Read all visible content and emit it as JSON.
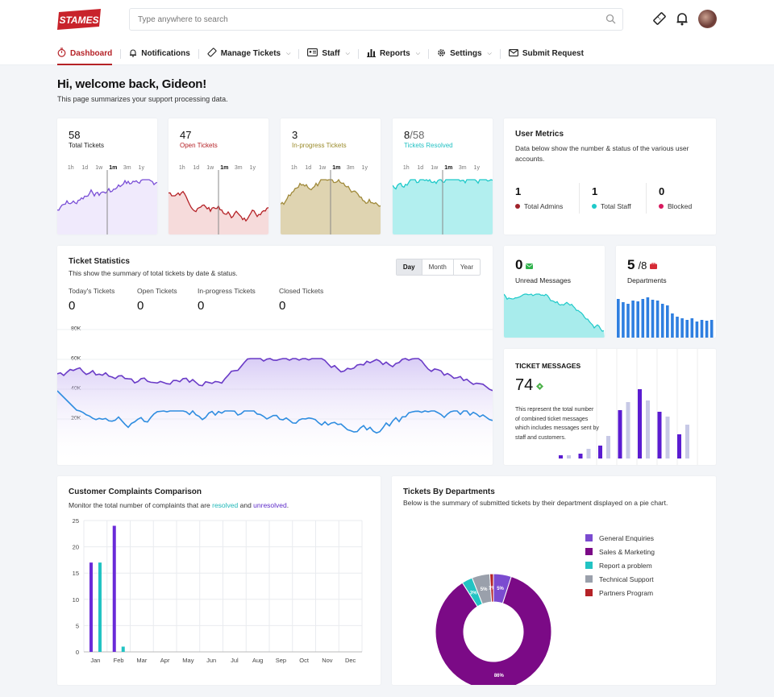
{
  "brand": {
    "logo_text": "STAMES",
    "logo_color": "#c8232b",
    "accent": "#b52227"
  },
  "search": {
    "placeholder": "Type anywhere to search"
  },
  "nav": [
    {
      "label": "Dashboard",
      "icon": "stopwatch-icon",
      "active": true,
      "dropdown": false
    },
    {
      "label": "Notifications",
      "icon": "bell-icon",
      "dropdown": false
    },
    {
      "label": "Manage Tickets",
      "icon": "ticket-icon",
      "dropdown": true
    },
    {
      "label": "Staff",
      "icon": "id-card-icon",
      "dropdown": true
    },
    {
      "label": "Reports",
      "icon": "bar-chart-icon",
      "dropdown": true
    },
    {
      "label": "Settings",
      "icon": "gear-icon",
      "dropdown": true
    },
    {
      "label": "Submit Request",
      "icon": "envelope-icon",
      "dropdown": false
    }
  ],
  "welcome": {
    "title": "Hi, welcome back, Gideon!",
    "subtitle": "This page summarizes your support processing data."
  },
  "mini_cards": [
    {
      "value": "58",
      "label": "Total Tickets",
      "label_color": "#222222",
      "color": "#7a4fd6",
      "fill": "#ede6fb"
    },
    {
      "value": "47",
      "label": "Open Tickets",
      "label_color": "#b52227",
      "color": "#b52227",
      "fill": "#f5d5d5"
    },
    {
      "value": "3",
      "label": "In-progress Tickets",
      "label_color": "#9a8a2a",
      "color": "#a08a3b",
      "fill": "#d9cda3"
    },
    {
      "value": "8",
      "value_suffix": "/58",
      "label": "Tickets Resolved",
      "label_color": "#22c1c3",
      "color": "#1ec9c9",
      "fill": "#a5ecec"
    }
  ],
  "ranges": [
    "1h",
    "1d",
    "1w",
    "1m",
    "3m",
    "1y"
  ],
  "user_metrics": {
    "title": "User Metrics",
    "description": "Data below show the number & status of the various user accounts.",
    "stats": [
      {
        "value": "1",
        "label": "Total Admins",
        "color": "#a0222a"
      },
      {
        "value": "1",
        "label": "Total Staff",
        "color": "#1ec9c9"
      },
      {
        "value": "0",
        "label": "Blocked",
        "color": "#d8195e"
      }
    ]
  },
  "ticket_stats": {
    "title": "Ticket Statistics",
    "description": "This show the summary of total tickets by date & status.",
    "periods": [
      "Day",
      "Month",
      "Year"
    ],
    "stats": [
      {
        "label": "Today's Tickets",
        "value": "0"
      },
      {
        "label": "Open Tickets",
        "value": "0"
      },
      {
        "label": "In-progress Tickets",
        "value": "0"
      },
      {
        "label": "Closed Tickets",
        "value": "0"
      }
    ],
    "y_ticks": [
      "80K",
      "60K",
      "40K",
      "20K"
    ]
  },
  "unread": {
    "value": "0",
    "label": "Unread Messages",
    "icon": "mail-icon",
    "icon_color": "#2fb24c"
  },
  "departments": {
    "value": "5",
    "value_suffix": "/8",
    "label": "Departments",
    "icon": "briefcase-icon",
    "icon_color": "#d62b36"
  },
  "ticket_messages": {
    "title": "TICKET MESSAGES",
    "value": "74",
    "description": "This represent the total number of combined ticket messages which includes messages sent by staff and customers."
  },
  "complaints": {
    "title": "Customer Complaints Comparison",
    "desc_before": "Monitor the total number of complaints that are ",
    "resolved": "resolved",
    "desc_mid": " and ",
    "unresolved": "unresolved",
    "desc_after": "."
  },
  "departments_chart": {
    "title": "Tickets By Departments",
    "description": "Below is the summary of submitted tickets by their department displayed on a pie chart."
  },
  "chart_data": [
    {
      "type": "bar",
      "title": "Customer Complaints Comparison",
      "categories": [
        "Jan",
        "Feb",
        "Mar",
        "Apr",
        "May",
        "Jun",
        "Jul",
        "Aug",
        "Sep",
        "Oct",
        "Nov",
        "Dec"
      ],
      "y_ticks": [
        0,
        5,
        10,
        15,
        20,
        25
      ],
      "ylim": [
        0,
        25
      ],
      "grid": true,
      "series": [
        {
          "color": "#6a2bd8",
          "values": [
            17,
            24,
            0,
            0,
            0,
            0,
            0,
            0,
            0,
            0,
            0,
            0
          ]
        },
        {
          "color": "#22c3c3",
          "values": [
            17,
            1,
            0,
            0,
            0,
            0,
            0,
            0,
            0,
            0,
            0,
            0
          ]
        }
      ]
    },
    {
      "type": "pie",
      "title": "Tickets By Departments",
      "donut": true,
      "slices": [
        {
          "name": "General Enquiries",
          "value": 5,
          "label": "5%",
          "color": "#7b4bd0"
        },
        {
          "name": "Sales & Marketing",
          "value": 86,
          "label": "86%",
          "color": "#7b0a86"
        },
        {
          "name": "Report a problem",
          "value": 3,
          "label": "3%",
          "color": "#22c3c3"
        },
        {
          "name": "Technical Support",
          "value": 5,
          "label": "5%",
          "color": "#9aa0ab"
        },
        {
          "name": "Partners Program",
          "value": 1,
          "label": "1%",
          "color": "#b52227"
        }
      ]
    }
  ]
}
